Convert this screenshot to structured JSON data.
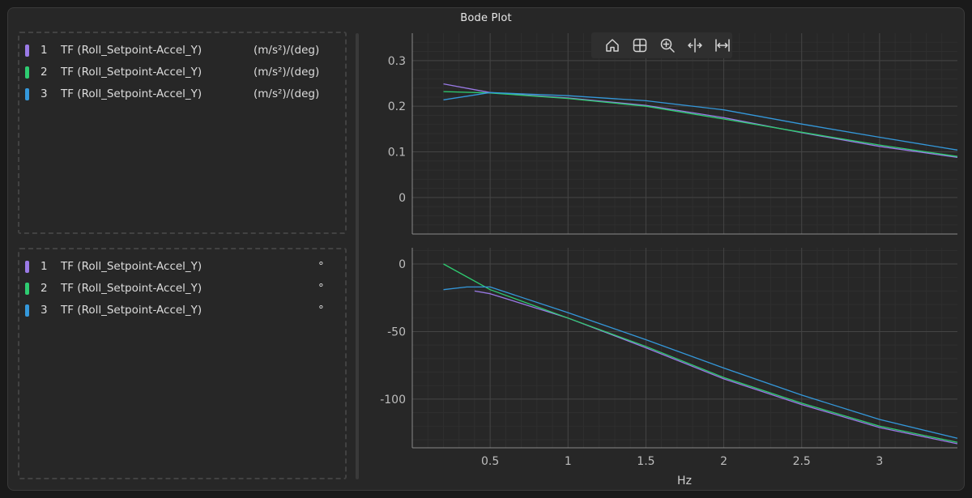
{
  "window": {
    "title": "Bode Plot"
  },
  "legend_magnitude": {
    "items": [
      {
        "index": "1",
        "name": "TF (Roll_Setpoint-Accel_Y)",
        "unit": "(m/s²)/(deg)",
        "color": "#9a7ae6"
      },
      {
        "index": "2",
        "name": "TF (Roll_Setpoint-Accel_Y)",
        "unit": "(m/s²)/(deg)",
        "color": "#2ecc71"
      },
      {
        "index": "3",
        "name": "TF (Roll_Setpoint-Accel_Y)",
        "unit": "(m/s²)/(deg)",
        "color": "#3498db"
      }
    ]
  },
  "legend_phase": {
    "items": [
      {
        "index": "1",
        "name": "TF (Roll_Setpoint-Accel_Y)",
        "unit": "°",
        "color": "#9a7ae6"
      },
      {
        "index": "2",
        "name": "TF (Roll_Setpoint-Accel_Y)",
        "unit": "°",
        "color": "#2ecc71"
      },
      {
        "index": "3",
        "name": "TF (Roll_Setpoint-Accel_Y)",
        "unit": "°",
        "color": "#3498db"
      }
    ]
  },
  "toolbar": {
    "icons": [
      "home-icon",
      "grid-icon",
      "zoom-in-icon",
      "pan-horizontal-icon",
      "fit-width-icon"
    ]
  },
  "chart_data": [
    {
      "type": "line",
      "title": "",
      "xlabel": "Hz",
      "ylabel": "",
      "xlim": [
        0.0,
        3.5
      ],
      "ylim": [
        -0.08,
        0.36
      ],
      "x_ticks": [
        0.5,
        1,
        1.5,
        2,
        2.5,
        3
      ],
      "x_tick_labels": [
        "0.5",
        "1",
        "1.5",
        "2",
        "2.5",
        "3"
      ],
      "y_ticks": [
        0,
        0.1,
        0.2,
        0.3
      ],
      "y_tick_labels": [
        "0",
        "0.1",
        "0.2",
        "0.3"
      ],
      "grid": true,
      "series": [
        {
          "name": "1",
          "color": "#9a7ae6",
          "x": [
            0.2,
            0.5,
            1.0,
            1.5,
            2.0,
            2.5,
            3.0,
            3.5
          ],
          "y": [
            0.249,
            0.23,
            0.218,
            0.202,
            0.175,
            0.142,
            0.112,
            0.088
          ]
        },
        {
          "name": "2",
          "color": "#2ecc71",
          "x": [
            0.2,
            0.5,
            1.0,
            1.5,
            2.0,
            2.5,
            3.0,
            3.5
          ],
          "y": [
            0.232,
            0.229,
            0.217,
            0.2,
            0.172,
            0.143,
            0.115,
            0.09
          ]
        },
        {
          "name": "3",
          "color": "#3498db",
          "x": [
            0.2,
            0.5,
            1.0,
            1.5,
            2.0,
            2.5,
            3.0,
            3.5
          ],
          "y": [
            0.214,
            0.23,
            0.223,
            0.212,
            0.192,
            0.161,
            0.132,
            0.104
          ]
        }
      ]
    },
    {
      "type": "line",
      "title": "",
      "xlabel": "Hz",
      "ylabel": "",
      "xlim": [
        0.0,
        3.5
      ],
      "ylim": [
        -136,
        12
      ],
      "x_ticks": [
        0.5,
        1,
        1.5,
        2,
        2.5,
        3
      ],
      "x_tick_labels": [
        "0.5",
        "1",
        "1.5",
        "2",
        "2.5",
        "3"
      ],
      "y_ticks": [
        0,
        -50,
        -100
      ],
      "y_tick_labels": [
        "0",
        "-50",
        "-100"
      ],
      "grid": true,
      "series": [
        {
          "name": "1",
          "color": "#9a7ae6",
          "x": [
            0.4,
            0.5,
            1.0,
            1.5,
            2.0,
            2.5,
            3.0,
            3.5
          ],
          "y": [
            -20,
            -22,
            -40,
            -62,
            -85,
            -104,
            -121,
            -133
          ]
        },
        {
          "name": "2",
          "color": "#2ecc71",
          "x": [
            0.2,
            0.5,
            1.0,
            1.5,
            2.0,
            2.5,
            3.0,
            3.5
          ],
          "y": [
            0,
            -19,
            -40,
            -61,
            -84,
            -103,
            -120,
            -132
          ]
        },
        {
          "name": "3",
          "color": "#3498db",
          "x": [
            0.2,
            0.35,
            0.5,
            1.0,
            1.5,
            2.0,
            2.5,
            3.0,
            3.5
          ],
          "y": [
            -19,
            -17,
            -17,
            -36,
            -56,
            -77,
            -97,
            -115,
            -129
          ]
        }
      ]
    }
  ]
}
